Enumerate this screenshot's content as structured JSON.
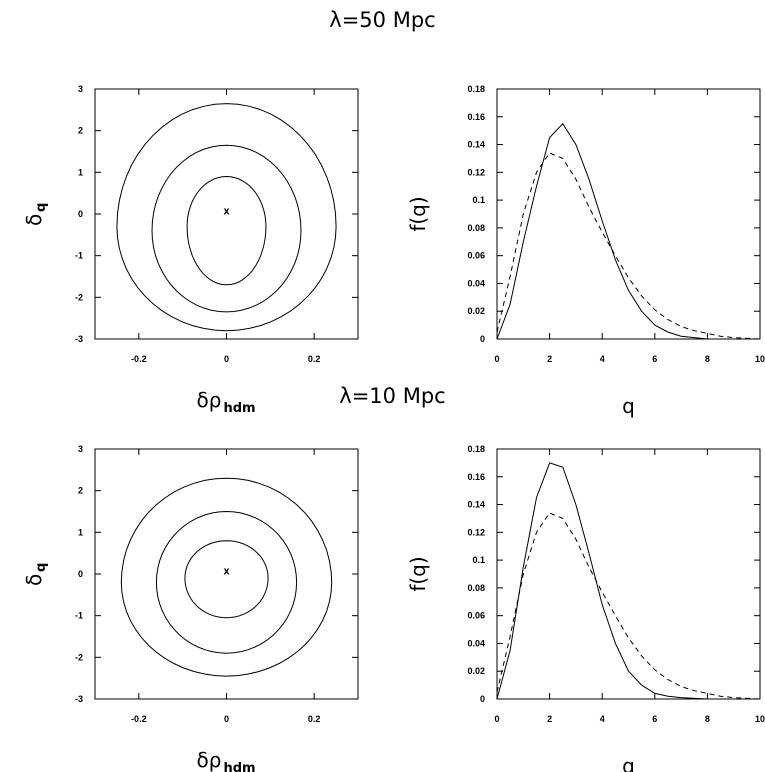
{
  "titles": {
    "top": "λ=50 Mpc",
    "bottom": "λ=10 Mpc"
  },
  "chart_data": [
    {
      "type": "contour",
      "panel": "contour-50",
      "xlabel_main": "δρ",
      "xlabel_sub": "hdm",
      "ylabel_main": "δ",
      "ylabel_sub": "q",
      "xlim": [
        -0.3,
        0.3
      ],
      "ylim": [
        -3,
        3
      ],
      "xticks": [
        -0.2,
        0,
        0.2
      ],
      "xtick_labels": [
        "-0.2",
        "0",
        "0.2"
      ],
      "yticks": [
        -3,
        -2,
        -1,
        0,
        1,
        2,
        3
      ],
      "ytick_labels": [
        "-3",
        "-2",
        "-1",
        "0",
        "1",
        "2",
        "3"
      ],
      "marker": {
        "x": 0,
        "y": 0.08,
        "symbol": "x"
      },
      "contours": [
        {
          "cx": 0.0,
          "cy": -0.3,
          "rx": 0.09,
          "ry_top": 1.2,
          "ry_bottom": 1.4
        },
        {
          "cx": 0.0,
          "cy": -0.4,
          "rx": 0.17,
          "ry_top": 2.05,
          "ry_bottom": 1.95
        },
        {
          "cx": 0.0,
          "cy": -0.3,
          "rx": 0.25,
          "ry_top": 2.95,
          "ry_bottom": 2.5
        }
      ]
    },
    {
      "type": "line",
      "panel": "fq-50",
      "xlabel": "q",
      "ylabel": "f(q)",
      "xlim": [
        0,
        10
      ],
      "ylim": [
        0,
        0.18
      ],
      "xticks": [
        0,
        2,
        4,
        6,
        8,
        10
      ],
      "xtick_labels": [
        "0",
        "2",
        "4",
        "6",
        "8",
        "10"
      ],
      "yticks": [
        0,
        0.02,
        0.04,
        0.06,
        0.08,
        0.1,
        0.12,
        0.14,
        0.16,
        0.18
      ],
      "ytick_labels": [
        "0",
        "0.02",
        "0.04",
        "0.06",
        "0.08",
        "0.1",
        "0.12",
        "0.14",
        "0.16",
        "0.18"
      ],
      "series": [
        {
          "style": "solid",
          "x": [
            0,
            0.5,
            1,
            1.5,
            2,
            2.5,
            3,
            3.5,
            4,
            4.5,
            5,
            5.5,
            6,
            6.5,
            7,
            7.5,
            8,
            9,
            10
          ],
          "y": [
            0,
            0.025,
            0.07,
            0.11,
            0.145,
            0.155,
            0.14,
            0.115,
            0.085,
            0.057,
            0.035,
            0.02,
            0.01,
            0.005,
            0.002,
            0.001,
            0,
            0,
            0
          ]
        },
        {
          "style": "dashed",
          "x": [
            0,
            0.5,
            1,
            1.5,
            2,
            2.5,
            3,
            3.5,
            4,
            4.5,
            5,
            5.5,
            6,
            6.5,
            7,
            7.5,
            8,
            8.5,
            9,
            9.5,
            10
          ],
          "y": [
            0.005,
            0.045,
            0.09,
            0.12,
            0.134,
            0.13,
            0.115,
            0.095,
            0.077,
            0.06,
            0.044,
            0.031,
            0.021,
            0.014,
            0.009,
            0.006,
            0.004,
            0.002,
            0.001,
            0.0005,
            0
          ]
        }
      ]
    },
    {
      "type": "contour",
      "panel": "contour-10",
      "xlabel_main": "δρ",
      "xlabel_sub": "hdm",
      "ylabel_main": "δ",
      "ylabel_sub": "q",
      "xlim": [
        -0.3,
        0.3
      ],
      "ylim": [
        -3,
        3
      ],
      "xticks": [
        -0.2,
        0,
        0.2
      ],
      "xtick_labels": [
        "-0.2",
        "0",
        "0.2"
      ],
      "yticks": [
        -3,
        -2,
        -1,
        0,
        1,
        2,
        3
      ],
      "ytick_labels": [
        "-3",
        "-2",
        "-1",
        "0",
        "1",
        "2",
        "3"
      ],
      "marker": {
        "x": 0,
        "y": 0.08,
        "symbol": "x"
      },
      "contours": [
        {
          "cx": 0.0,
          "cy": -0.1,
          "rx": 0.095,
          "ry_top": 0.9,
          "ry_bottom": 0.95
        },
        {
          "cx": 0.0,
          "cy": -0.2,
          "rx": 0.16,
          "ry_top": 1.7,
          "ry_bottom": 1.7
        },
        {
          "cx": 0.0,
          "cy": -0.2,
          "rx": 0.24,
          "ry_top": 2.5,
          "ry_bottom": 2.25
        }
      ]
    },
    {
      "type": "line",
      "panel": "fq-10",
      "xlabel": "q",
      "ylabel": "f(q)",
      "xlim": [
        0,
        10
      ],
      "ylim": [
        0,
        0.18
      ],
      "xticks": [
        0,
        2,
        4,
        6,
        8,
        10
      ],
      "xtick_labels": [
        "0",
        "2",
        "4",
        "6",
        "8",
        "10"
      ],
      "yticks": [
        0,
        0.02,
        0.04,
        0.06,
        0.08,
        0.1,
        0.12,
        0.14,
        0.16,
        0.18
      ],
      "ytick_labels": [
        "0",
        "0.02",
        "0.04",
        "0.06",
        "0.08",
        "0.1",
        "0.12",
        "0.14",
        "0.16",
        "0.18"
      ],
      "series": [
        {
          "style": "solid",
          "x": [
            0,
            0.5,
            1,
            1.5,
            2,
            2.5,
            3,
            3.5,
            4,
            4.5,
            5,
            5.5,
            6,
            6.5,
            7,
            8,
            9,
            10
          ],
          "y": [
            0,
            0.035,
            0.095,
            0.145,
            0.17,
            0.167,
            0.14,
            0.105,
            0.068,
            0.04,
            0.02,
            0.01,
            0.004,
            0.002,
            0.001,
            0,
            0,
            0
          ]
        },
        {
          "style": "dashed",
          "x": [
            0,
            0.5,
            1,
            1.5,
            2,
            2.5,
            3,
            3.5,
            4,
            4.5,
            5,
            5.5,
            6,
            6.5,
            7,
            7.5,
            8,
            8.5,
            9,
            9.5,
            10
          ],
          "y": [
            0.005,
            0.045,
            0.09,
            0.12,
            0.134,
            0.13,
            0.115,
            0.095,
            0.077,
            0.06,
            0.044,
            0.031,
            0.021,
            0.014,
            0.009,
            0.006,
            0.004,
            0.002,
            0.001,
            0.0005,
            0
          ]
        }
      ]
    }
  ]
}
